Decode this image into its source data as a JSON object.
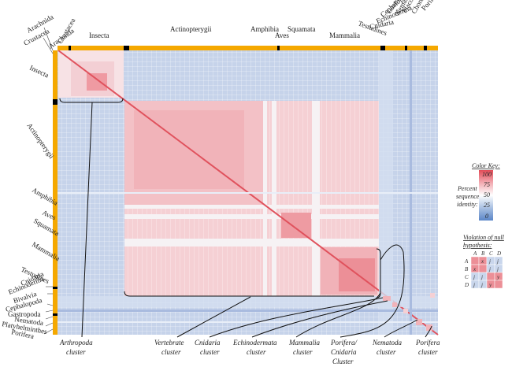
{
  "colors": {
    "blue_bg": "#c6d3ea",
    "blue_light": "#d8e2f1",
    "pink": "#f4cdd0",
    "pink_light": "#f7dfe1",
    "red": "#ea8088",
    "red_dark": "#e25c66",
    "white": "#f6f2f4",
    "orange": "#f5a800",
    "black": "#000000",
    "key_100": "#e24b57",
    "key_75": "#f2aab1",
    "key_50": "#ffffff",
    "key_25": "#a9c0e2",
    "key_0": "#5b86c8"
  },
  "top_taxa": [
    "Crustacea",
    "Arachnida",
    "Insecta",
    "Actinopterygii",
    "Amphibia",
    "Aves",
    "Squamata",
    "Mammalia",
    "Testudines",
    "Cnidaria",
    "Echinodermata",
    "Cephalopoda",
    "Gastropoda",
    "Nematoda",
    "Placozoa",
    "Chordata",
    "Porifera"
  ],
  "top_text": [
    "Crustacea",
    "Arachnida",
    "Insecta",
    "Actinopterygii",
    "Amphibia",
    "Aves",
    "Squamata",
    "Mammalia",
    "Testudines",
    "Cnidaria",
    "Echinoderma",
    "Cephalopoda",
    "Gastropoda",
    "Nematoda",
    "Placozoa",
    "Chordata",
    "Porifera"
  ],
  "left_text": [
    "Arachnida",
    "Crustacea",
    "Insecta",
    "Actinopterygii",
    "Amphibia",
    "Aves",
    "Squamata",
    "Mammalia",
    "Testudines",
    "Cnidaria",
    "Echinoderma",
    "Bivalvia",
    "Cephalopoda",
    "Gastropoda",
    "Nematoda",
    "Platyhelminthes",
    "Porifera"
  ],
  "clusters": [
    {
      "line1": "Arthropoda",
      "line2": "cluster",
      "line3": ""
    },
    {
      "line1": "Vertebrate",
      "line2": "cluster",
      "line3": ""
    },
    {
      "line1": "Cnidaria",
      "line2": "cluster",
      "line3": ""
    },
    {
      "line1": "Echinodermata",
      "line2": "cluster",
      "line3": ""
    },
    {
      "line1": "Mammalia",
      "line2": "cluster",
      "line3": ""
    },
    {
      "line1": "Porifera/",
      "line2": "Cnidaria",
      "line3": "Cluster"
    },
    {
      "line1": "Nematoda",
      "line2": "cluster",
      "line3": ""
    },
    {
      "line1": "Porifera",
      "line2": "cluster",
      "line3": ""
    }
  ],
  "color_key": {
    "title": "Color Key:",
    "ticks": [
      "100",
      "75",
      "50",
      "25",
      "0"
    ],
    "axis_lines": [
      "Percent",
      "sequence",
      "identity:"
    ]
  },
  "null_hypothesis": {
    "title_line1": "Violation of null",
    "title_line2": "hypothesis:",
    "headers": [
      "A",
      "B",
      "C",
      "D"
    ],
    "rows": [
      {
        "label": "A",
        "cells": [
          "",
          "x",
          "j",
          "j"
        ]
      },
      {
        "label": "B",
        "cells": [
          "x",
          "",
          "j",
          "j"
        ]
      },
      {
        "label": "C",
        "cells": [
          "j",
          "j",
          "",
          "y"
        ]
      },
      {
        "label": "D",
        "cells": [
          "j",
          "j",
          "y",
          ""
        ]
      }
    ],
    "cell_colors": [
      [
        "red",
        "red",
        "blue",
        "blue"
      ],
      [
        "red",
        "red",
        "blue",
        "blue"
      ],
      [
        "blue",
        "blue",
        "red",
        "red"
      ],
      [
        "blue",
        "blue",
        "red",
        "red"
      ]
    ]
  }
}
